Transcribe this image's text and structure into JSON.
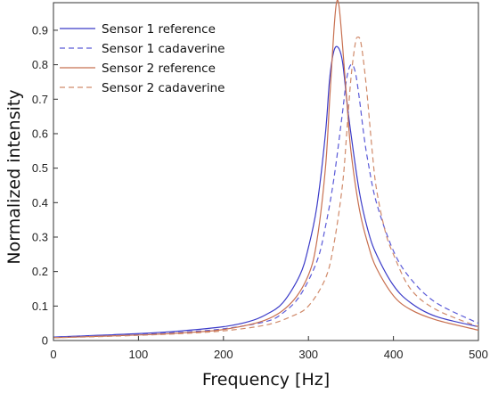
{
  "chart_data": {
    "type": "line",
    "xlabel": "Frequency [Hz]",
    "ylabel": "Normalized intensity",
    "xlim": [
      0,
      500
    ],
    "ylim": [
      0,
      0.98
    ],
    "xticks": [
      0,
      100,
      200,
      300,
      400,
      500
    ],
    "yticks": [
      0,
      0.1,
      0.2,
      0.3,
      0.4,
      0.5,
      0.6,
      0.7,
      0.8,
      0.9
    ],
    "ytick_labels": [
      "0",
      "0.1",
      "0.2",
      "0.3",
      "0.4",
      "0.5",
      "0.6",
      "0.7",
      "0.8",
      "0.9"
    ],
    "grid": false,
    "legend_position": "top-left",
    "series": [
      {
        "name": "Sensor 1 reference",
        "color": "#3b3bc8",
        "dash": "solid",
        "x": [
          0,
          50,
          100,
          150,
          200,
          230,
          250,
          270,
          290,
          300,
          310,
          320,
          325,
          330,
          335,
          340,
          345,
          350,
          360,
          370,
          380,
          400,
          420,
          450,
          500
        ],
        "y": [
          0.01,
          0.015,
          0.02,
          0.028,
          0.04,
          0.055,
          0.075,
          0.11,
          0.19,
          0.27,
          0.39,
          0.6,
          0.76,
          0.84,
          0.85,
          0.81,
          0.7,
          0.6,
          0.43,
          0.32,
          0.25,
          0.16,
          0.11,
          0.07,
          0.04
        ]
      },
      {
        "name": "Sensor 1 cadaverine",
        "color": "#5a5ad8",
        "dash": "dashed",
        "x": [
          0,
          50,
          100,
          150,
          200,
          250,
          270,
          290,
          310,
          320,
          330,
          340,
          345,
          350,
          355,
          360,
          365,
          370,
          380,
          400,
          420,
          450,
          500
        ],
        "y": [
          0.01,
          0.014,
          0.018,
          0.024,
          0.034,
          0.055,
          0.08,
          0.13,
          0.23,
          0.33,
          0.47,
          0.66,
          0.76,
          0.8,
          0.78,
          0.7,
          0.6,
          0.52,
          0.4,
          0.26,
          0.18,
          0.11,
          0.05
        ]
      },
      {
        "name": "Sensor 2 reference",
        "color": "#c87050",
        "dash": "solid",
        "x": [
          0,
          50,
          100,
          150,
          200,
          250,
          280,
          300,
          310,
          320,
          325,
          330,
          333,
          336,
          340,
          345,
          350,
          360,
          370,
          380,
          400,
          420,
          450,
          500
        ],
        "y": [
          0.008,
          0.012,
          0.016,
          0.022,
          0.032,
          0.06,
          0.11,
          0.19,
          0.29,
          0.5,
          0.7,
          0.9,
          0.98,
          0.97,
          0.86,
          0.7,
          0.55,
          0.38,
          0.28,
          0.21,
          0.13,
          0.09,
          0.06,
          0.03
        ]
      },
      {
        "name": "Sensor 2 cadaverine",
        "color": "#d08a6a",
        "dash": "dashed",
        "x": [
          0,
          50,
          100,
          150,
          200,
          250,
          280,
          300,
          320,
          330,
          340,
          345,
          350,
          355,
          358,
          362,
          368,
          375,
          380,
          390,
          400,
          420,
          450,
          500
        ],
        "y": [
          0.008,
          0.011,
          0.015,
          0.02,
          0.028,
          0.045,
          0.07,
          0.1,
          0.18,
          0.28,
          0.45,
          0.6,
          0.76,
          0.86,
          0.88,
          0.86,
          0.74,
          0.55,
          0.44,
          0.32,
          0.25,
          0.15,
          0.09,
          0.04
        ]
      }
    ]
  }
}
